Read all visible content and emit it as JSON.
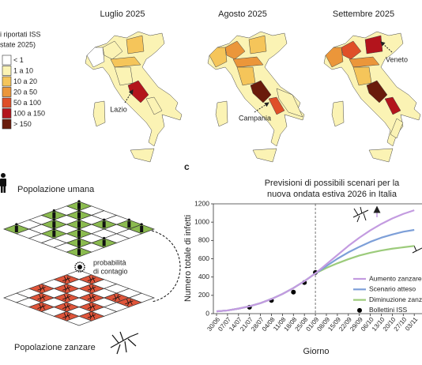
{
  "maps": {
    "legend_title": [
      "i riportati ISS",
      "state 2025)"
    ],
    "legend": [
      {
        "label": "< 1",
        "color": "#ffffff"
      },
      {
        "label": "1 a 10",
        "color": "#fbf3b4"
      },
      {
        "label": "10 a 20",
        "color": "#f5c55a"
      },
      {
        "label": "20 a 50",
        "color": "#eb963a"
      },
      {
        "label": "50 a 100",
        "color": "#df4f28"
      },
      {
        "label": "100 a 150",
        "color": "#b3141c"
      },
      {
        "label": "> 150",
        "color": "#6a1b0b"
      }
    ],
    "panels": [
      {
        "title": "Luglio 2025",
        "annotation": "Lazio"
      },
      {
        "title": "Agosto 2025",
        "annotation": "Campania"
      },
      {
        "title": "Settembre 2025",
        "annotation": "Veneto"
      }
    ]
  },
  "diagram": {
    "human_label": "Popolazione umana",
    "contagion_label": [
      "probabilità",
      "di contagio"
    ],
    "mosquito_label": "Popolazione zanzare"
  },
  "chart_data": {
    "type": "line",
    "panel_label": "c",
    "title": [
      "Previsioni di possibili scenari per la",
      "nuova ondata estiva 2026 in Italia"
    ],
    "x_label": "Giorno",
    "y_label": "Numero totale di infetti",
    "categories": [
      "30/06",
      "07/07",
      "14/07",
      "21/07",
      "28/07",
      "04/08",
      "11/08",
      "18/08",
      "25/08",
      "01/09",
      "08/09",
      "15/09",
      "22/09",
      "29/09",
      "06/10",
      "13/10",
      "20/10",
      "27/10",
      "03/11"
    ],
    "ylim": [
      0,
      1200
    ],
    "yticks": [
      0,
      200,
      400,
      600,
      800,
      1000,
      1200
    ],
    "legend": "lower right",
    "series": [
      {
        "name": "Aumento zanzare",
        "color": "#c39be0",
        "values": [
          25,
          35,
          55,
          80,
          115,
          160,
          215,
          280,
          355,
          440,
          540,
          640,
          740,
          830,
          910,
          980,
          1040,
          1090,
          1130
        ]
      },
      {
        "name": "Scenario atteso",
        "color": "#7d9fd8",
        "values": [
          25,
          35,
          55,
          80,
          115,
          160,
          215,
          280,
          355,
          440,
          520,
          600,
          670,
          730,
          785,
          830,
          865,
          895,
          915
        ]
      },
      {
        "name": "Diminuzione zanzare",
        "color": "#9ccb7b",
        "values": [
          25,
          35,
          55,
          80,
          115,
          160,
          215,
          280,
          355,
          440,
          500,
          550,
          595,
          635,
          665,
          690,
          710,
          725,
          740
        ]
      },
      {
        "name": "Bollettini ISS",
        "type": "scatter",
        "color": "#000000",
        "values": [
          null,
          null,
          null,
          70,
          null,
          145,
          null,
          235,
          340,
          450,
          null,
          null,
          null,
          null,
          null,
          null,
          null,
          null,
          null
        ]
      }
    ]
  }
}
